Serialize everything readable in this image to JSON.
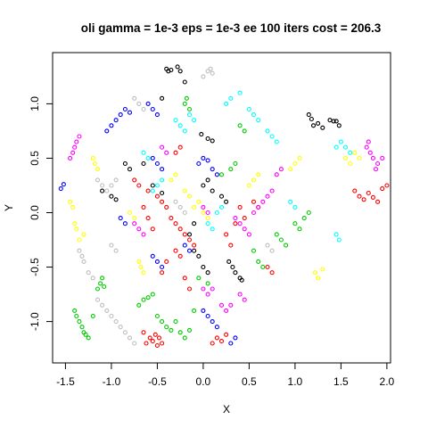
{
  "chart_data": {
    "type": "scatter",
    "title": "oli gamma = 1e-3 eps = 1e-3 ee 100 iters cost = 206.3",
    "xlabel": "X",
    "ylabel": "Y",
    "xlim": [
      -1.64,
      2.04
    ],
    "ylim": [
      -1.38,
      1.47
    ],
    "x_ticks": [
      -1.5,
      -1.0,
      -0.5,
      0.0,
      0.5,
      1.0,
      1.5,
      2.0
    ],
    "x_tick_labels": [
      "-1.5",
      "-1.0",
      "-0.5",
      "0.0",
      "0.5",
      "1.0",
      "1.5",
      "2.0"
    ],
    "y_ticks": [
      -1.0,
      -0.5,
      0.0,
      0.5,
      1.0
    ],
    "y_tick_labels": [
      "-1.0",
      "-0.5",
      "0.0",
      "0.5",
      "1.0"
    ],
    "grid": false,
    "legend": "none",
    "marker": "open circle",
    "series": [
      {
        "color": "#000000",
        "points": [
          [
            -0.4,
            1.32
          ],
          [
            -0.38,
            1.3
          ],
          [
            -0.35,
            1.31
          ],
          [
            -0.28,
            1.34
          ],
          [
            -0.25,
            1.3
          ],
          [
            -0.2,
            1.2
          ],
          [
            -0.45,
            1.05
          ],
          [
            -0.02,
            0.72
          ],
          [
            0.05,
            0.68
          ],
          [
            0.1,
            0.66
          ],
          [
            1.15,
            0.9
          ],
          [
            1.18,
            0.86
          ],
          [
            1.2,
            0.8
          ],
          [
            1.25,
            0.82
          ],
          [
            1.3,
            0.78
          ],
          [
            1.38,
            0.85
          ],
          [
            1.42,
            0.84
          ],
          [
            1.45,
            0.84
          ],
          [
            1.48,
            0.8
          ],
          [
            -0.85,
            0.45
          ],
          [
            -0.8,
            0.4
          ],
          [
            -0.65,
            0.45
          ],
          [
            -1.1,
            0.2
          ],
          [
            -1.0,
            0.15
          ],
          [
            -0.95,
            0.12
          ],
          [
            -0.55,
            0.25
          ],
          [
            -0.45,
            0.18
          ],
          [
            0.0,
            0.25
          ],
          [
            0.05,
            0.3
          ],
          [
            0.1,
            0.2
          ],
          [
            0.2,
            0.15
          ],
          [
            0.25,
            0.1
          ],
          [
            -0.1,
            -0.35
          ],
          [
            -0.05,
            -0.4
          ],
          [
            0.0,
            -0.5
          ],
          [
            0.05,
            -0.55
          ],
          [
            0.28,
            -0.45
          ],
          [
            0.32,
            -0.5
          ],
          [
            0.35,
            -0.55
          ],
          [
            0.4,
            -0.6
          ],
          [
            0.42,
            -0.62
          ],
          [
            -0.15,
            -0.2
          ],
          [
            -0.1,
            -0.1
          ]
        ]
      },
      {
        "color": "#ff0000",
        "points": [
          [
            -0.62,
            -1.2
          ],
          [
            -0.58,
            -1.15
          ],
          [
            -0.55,
            -1.18
          ],
          [
            -0.52,
            -1.12
          ],
          [
            -0.5,
            -1.22
          ],
          [
            -0.48,
            -1.15
          ],
          [
            -0.45,
            -1.2
          ],
          [
            -0.65,
            -1.1
          ],
          [
            0.1,
            -1.2
          ],
          [
            0.15,
            -1.15
          ],
          [
            0.2,
            -1.18
          ],
          [
            0.25,
            -1.12
          ],
          [
            1.65,
            0.2
          ],
          [
            1.7,
            0.15
          ],
          [
            1.75,
            0.12
          ],
          [
            1.8,
            0.18
          ],
          [
            1.85,
            0.14
          ],
          [
            1.9,
            0.1
          ],
          [
            1.95,
            0.22
          ],
          [
            2.0,
            0.25
          ],
          [
            -0.5,
            0.15
          ],
          [
            -0.45,
            0.1
          ],
          [
            -0.4,
            0.05
          ],
          [
            -0.35,
            -0.05
          ],
          [
            -0.3,
            -0.1
          ],
          [
            -0.25,
            -0.15
          ],
          [
            -0.2,
            -0.2
          ],
          [
            -0.15,
            -0.25
          ],
          [
            -0.1,
            -0.3
          ],
          [
            -0.45,
            -0.55
          ],
          [
            -0.4,
            -0.45
          ],
          [
            -0.3,
            -0.35
          ],
          [
            -0.25,
            -0.4
          ],
          [
            -0.2,
            -0.6
          ],
          [
            -0.15,
            -0.7
          ],
          [
            0.25,
            -0.2
          ],
          [
            0.3,
            -0.3
          ],
          [
            0.35,
            -0.1
          ],
          [
            0.4,
            0.05
          ],
          [
            0.45,
            -0.05
          ],
          [
            0.55,
            0.1
          ],
          [
            0.6,
            0.05
          ],
          [
            -0.75,
            0.3
          ],
          [
            -0.7,
            0.25
          ],
          [
            -0.6,
            0.2
          ],
          [
            -0.65,
            0.05
          ],
          [
            -0.6,
            -0.05
          ],
          [
            -0.55,
            -0.15
          ],
          [
            -0.3,
            0.55
          ],
          [
            -0.25,
            0.6
          ],
          [
            0.7,
            -0.5
          ],
          [
            0.75,
            -0.55
          ]
        ]
      },
      {
        "color": "#00cc00",
        "points": [
          [
            -1.4,
            -0.9
          ],
          [
            -1.38,
            -0.95
          ],
          [
            -1.35,
            -1.0
          ],
          [
            -1.32,
            -1.05
          ],
          [
            -1.3,
            -1.1
          ],
          [
            -1.28,
            -1.12
          ],
          [
            -1.25,
            -1.15
          ],
          [
            -1.2,
            -0.95
          ],
          [
            -1.15,
            -0.7
          ],
          [
            -1.12,
            -0.65
          ],
          [
            -1.08,
            -0.68
          ],
          [
            -1.1,
            -0.6
          ],
          [
            -0.7,
            -0.85
          ],
          [
            -0.65,
            -0.8
          ],
          [
            -0.6,
            -0.78
          ],
          [
            -0.55,
            -0.75
          ],
          [
            -0.5,
            -0.95
          ],
          [
            -0.45,
            -1.0
          ],
          [
            -0.4,
            -1.05
          ],
          [
            -0.35,
            -1.08
          ],
          [
            -0.3,
            -1.0
          ],
          [
            -0.25,
            -1.1
          ],
          [
            -0.2,
            -1.15
          ],
          [
            -0.15,
            -1.08
          ],
          [
            -0.1,
            -0.9
          ],
          [
            -0.2,
            1.0
          ],
          [
            -0.18,
            1.05
          ],
          [
            -0.15,
            0.95
          ],
          [
            0.4,
            0.8
          ],
          [
            0.45,
            0.75
          ],
          [
            0.55,
            -0.35
          ],
          [
            0.6,
            -0.45
          ],
          [
            0.65,
            -0.5
          ],
          [
            0.8,
            -0.2
          ],
          [
            0.85,
            -0.25
          ],
          [
            0.9,
            -0.3
          ],
          [
            1.0,
            -0.1
          ],
          [
            1.05,
            -0.15
          ],
          [
            1.1,
            -0.05
          ],
          [
            1.15,
            0.0
          ],
          [
            0.2,
            0.35
          ],
          [
            0.3,
            0.4
          ],
          [
            0.35,
            0.45
          ],
          [
            -0.05,
            -0.6
          ],
          [
            0.05,
            -0.65
          ]
        ]
      },
      {
        "color": "#0000ff",
        "points": [
          [
            -1.55,
            0.22
          ],
          [
            -1.52,
            0.26
          ],
          [
            -1.05,
            0.75
          ],
          [
            -1.0,
            0.8
          ],
          [
            -0.95,
            0.85
          ],
          [
            -0.9,
            0.9
          ],
          [
            -0.85,
            0.95
          ],
          [
            -0.8,
            0.92
          ],
          [
            -0.6,
            1.0
          ],
          [
            -0.55,
            0.95
          ],
          [
            -0.5,
            0.9
          ],
          [
            -0.55,
            0.5
          ],
          [
            -0.5,
            0.45
          ],
          [
            -0.45,
            0.4
          ],
          [
            -0.05,
            0.45
          ],
          [
            0.0,
            0.5
          ],
          [
            0.05,
            0.48
          ],
          [
            0.1,
            0.4
          ],
          [
            0.15,
            0.35
          ],
          [
            -0.55,
            -0.4
          ],
          [
            -0.5,
            -0.45
          ],
          [
            -0.45,
            -0.5
          ],
          [
            -0.2,
            -0.3
          ],
          [
            -0.15,
            -0.35
          ],
          [
            0.0,
            -0.9
          ],
          [
            0.05,
            -0.95
          ],
          [
            0.1,
            -1.0
          ],
          [
            0.15,
            -1.05
          ],
          [
            0.3,
            -1.2
          ],
          [
            0.35,
            -1.15
          ],
          [
            -0.9,
            -0.05
          ],
          [
            -0.85,
            -0.1
          ]
        ]
      },
      {
        "color": "#00ffff",
        "points": [
          [
            -0.3,
            0.85
          ],
          [
            -0.25,
            0.8
          ],
          [
            -0.2,
            0.75
          ],
          [
            -0.15,
            0.9
          ],
          [
            -0.1,
            0.85
          ],
          [
            0.25,
            1.0
          ],
          [
            0.3,
            1.05
          ],
          [
            0.4,
            1.1
          ],
          [
            0.5,
            0.95
          ],
          [
            0.55,
            0.9
          ],
          [
            0.6,
            0.85
          ],
          [
            0.7,
            0.75
          ],
          [
            0.75,
            0.7
          ],
          [
            0.8,
            0.65
          ],
          [
            1.45,
            0.6
          ],
          [
            1.5,
            0.65
          ],
          [
            1.55,
            0.6
          ],
          [
            1.6,
            0.55
          ],
          [
            1.45,
            -0.2
          ],
          [
            1.48,
            -0.25
          ],
          [
            -0.65,
            0.55
          ],
          [
            -0.6,
            0.5
          ],
          [
            -0.55,
            0.2
          ],
          [
            -0.5,
            0.25
          ],
          [
            -0.45,
            0.3
          ],
          [
            0.05,
            -0.1
          ],
          [
            0.1,
            -0.15
          ],
          [
            0.15,
            0.0
          ],
          [
            0.2,
            0.05
          ],
          [
            0.95,
            0.1
          ],
          [
            1.0,
            0.05
          ]
        ]
      },
      {
        "color": "#ff00ff",
        "points": [
          [
            -1.45,
            0.5
          ],
          [
            -1.42,
            0.55
          ],
          [
            -1.4,
            0.6
          ],
          [
            -1.38,
            0.65
          ],
          [
            -1.35,
            0.7
          ],
          [
            1.78,
            0.6
          ],
          [
            1.82,
            0.55
          ],
          [
            1.85,
            0.5
          ],
          [
            1.9,
            0.45
          ],
          [
            1.95,
            0.5
          ],
          [
            1.88,
            0.4
          ],
          [
            1.8,
            0.65
          ],
          [
            0.0,
            -0.7
          ],
          [
            0.05,
            -0.75
          ],
          [
            0.1,
            -0.7
          ],
          [
            0.2,
            -0.85
          ],
          [
            0.25,
            -0.9
          ],
          [
            0.3,
            -0.85
          ],
          [
            0.4,
            -0.75
          ],
          [
            0.45,
            -0.8
          ],
          [
            0.35,
            -0.05
          ],
          [
            0.4,
            -0.1
          ],
          [
            0.45,
            -0.15
          ],
          [
            0.5,
            -0.2
          ],
          [
            0.55,
            0.0
          ],
          [
            0.6,
            0.05
          ],
          [
            0.65,
            0.1
          ],
          [
            0.7,
            0.15
          ],
          [
            0.75,
            0.2
          ],
          [
            -0.75,
            -0.1
          ],
          [
            -0.7,
            -0.15
          ],
          [
            -0.65,
            -0.2
          ],
          [
            -0.45,
            0.6
          ],
          [
            -0.4,
            0.55
          ],
          [
            0.0,
            0.05
          ],
          [
            0.05,
            0.0
          ],
          [
            0.8,
            0.35
          ],
          [
            0.85,
            0.4
          ]
        ]
      },
      {
        "color": "#ffff00",
        "points": [
          [
            -1.45,
            0.1
          ],
          [
            -1.42,
            0.05
          ],
          [
            -1.4,
            -0.1
          ],
          [
            -1.38,
            -0.15
          ],
          [
            -1.35,
            -0.25
          ],
          [
            -1.3,
            -0.2
          ],
          [
            -1.2,
            0.5
          ],
          [
            -1.18,
            0.45
          ],
          [
            -1.15,
            0.4
          ],
          [
            -0.7,
            -0.45
          ],
          [
            -0.68,
            -0.5
          ],
          [
            -0.65,
            -0.55
          ],
          [
            -0.2,
            0.2
          ],
          [
            -0.15,
            0.15
          ],
          [
            -0.1,
            0.05
          ],
          [
            -0.05,
            0.1
          ],
          [
            0.0,
            0.0
          ],
          [
            0.05,
            -0.05
          ],
          [
            0.5,
            0.25
          ],
          [
            0.55,
            0.3
          ],
          [
            0.6,
            0.35
          ],
          [
            0.95,
            0.4
          ],
          [
            1.0,
            0.45
          ],
          [
            1.05,
            0.5
          ],
          [
            1.22,
            -0.55
          ],
          [
            1.25,
            -0.6
          ],
          [
            1.3,
            -0.52
          ],
          [
            1.55,
            0.5
          ],
          [
            1.6,
            0.45
          ],
          [
            1.65,
            0.55
          ],
          [
            1.7,
            0.5
          ],
          [
            -0.8,
            0.0
          ],
          [
            -0.75,
            -0.05
          ],
          [
            -0.35,
            0.3
          ],
          [
            -0.3,
            0.35
          ]
        ]
      },
      {
        "color": "#bebebe",
        "points": [
          [
            -1.35,
            -0.35
          ],
          [
            -1.32,
            -0.4
          ],
          [
            -1.3,
            -0.45
          ],
          [
            -1.25,
            -0.55
          ],
          [
            -1.2,
            -0.6
          ],
          [
            -1.15,
            -0.8
          ],
          [
            -1.1,
            -0.85
          ],
          [
            -1.05,
            -0.9
          ],
          [
            -1.0,
            -0.95
          ],
          [
            -0.95,
            -1.0
          ],
          [
            -0.9,
            -1.05
          ],
          [
            -0.85,
            -1.1
          ],
          [
            -0.8,
            -1.15
          ],
          [
            -0.75,
            -1.2
          ],
          [
            -1.15,
            0.3
          ],
          [
            -1.1,
            0.25
          ],
          [
            -1.05,
            0.2
          ],
          [
            -1.0,
            0.25
          ],
          [
            -0.95,
            0.3
          ],
          [
            -0.75,
            1.05
          ],
          [
            -0.7,
            1.0
          ],
          [
            -0.65,
            0.95
          ],
          [
            0.0,
            1.25
          ],
          [
            0.05,
            1.3
          ],
          [
            0.08,
            1.32
          ],
          [
            0.1,
            1.28
          ],
          [
            -0.3,
            0.1
          ],
          [
            -0.25,
            0.05
          ],
          [
            -0.2,
            0.0
          ],
          [
            0.7,
            -0.3
          ],
          [
            0.75,
            -0.35
          ],
          [
            -1.0,
            -0.3
          ],
          [
            -0.95,
            -0.35
          ]
        ]
      }
    ]
  }
}
